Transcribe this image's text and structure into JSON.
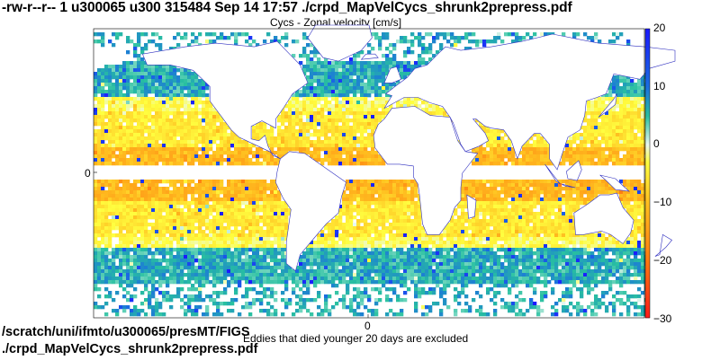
{
  "header": {
    "file_listing": "-rw-r--r-- 1 u300065 u300 315484 Sep 14 17:57 ./crpd_MapVelCycs_shrunk2prepress.pdf"
  },
  "footer": {
    "path_line": "/scratch/uni/ifmto/u300065/presMT/FIGS",
    "file_line": "./crpd_MapVelCycs_shrunk2prepress.pdf"
  },
  "chart_data": {
    "type": "heatmap",
    "title": "Cycs - Zonal velocity [cm/s]",
    "note": "Eddies that died younger 20 days are excluded",
    "x_tick_labels": [
      "0"
    ],
    "y_tick_labels": [
      "0"
    ],
    "colorbar": {
      "range": [
        -30,
        20
      ],
      "ticks": [
        20,
        10,
        0,
        -10,
        -20,
        -30
      ],
      "tick_labels": [
        "20",
        "10",
        "0",
        "−10",
        "−20",
        "−30"
      ],
      "colors": {
        "20": "#1a1aff",
        "10": "#1a6fe0",
        "5": "#28c0a0",
        "0": "#e8f8f0",
        "-3": "#ffff40",
        "-10": "#ffc020",
        "-20": "#ff7a10",
        "-30": "#ff1a1a"
      }
    },
    "grid": false,
    "background_land": "#ffffff",
    "coastline_color": "#3030c0"
  }
}
